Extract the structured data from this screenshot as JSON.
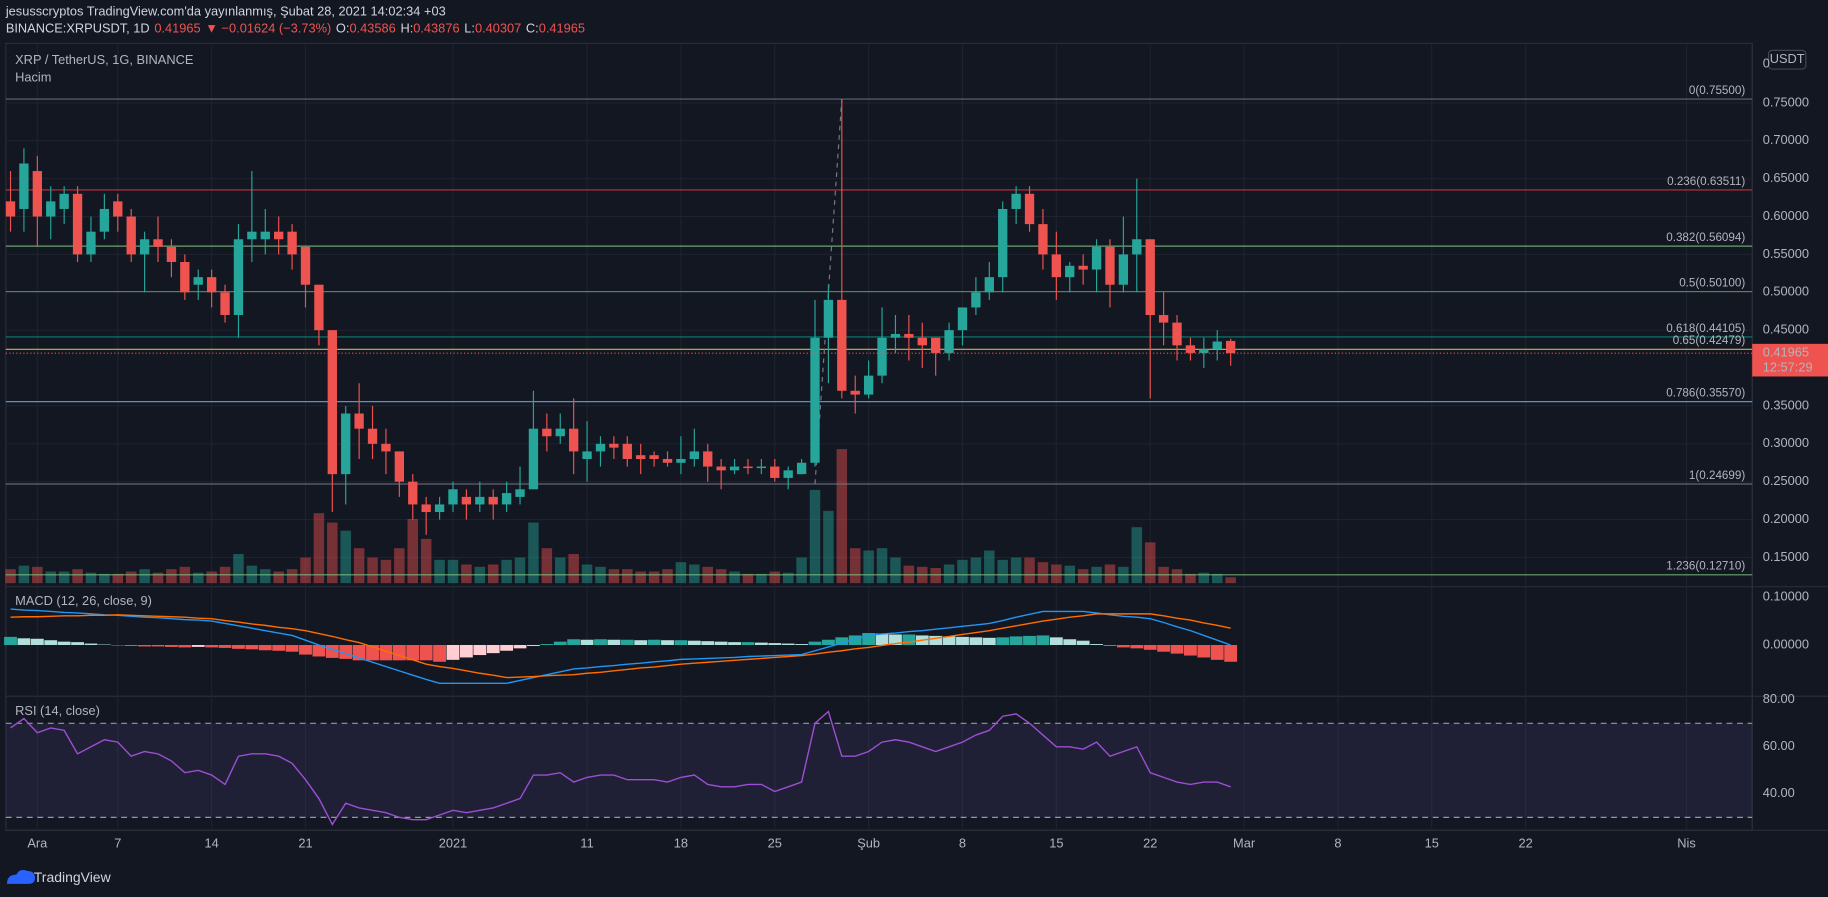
{
  "header": {
    "line1": "jesusscryptos TradingView.com'da yayınlanmış, Şubat 28, 2021 14:02:34 +03",
    "symbol": "BINANCE:XRPUSDT, 1D",
    "last": "0.41965",
    "change": "▼ −0.01624 (−3.73%)",
    "ohlc": [
      {
        "label": "O:",
        "value": "0.43586"
      },
      {
        "label": "H:",
        "value": "0.43876"
      },
      {
        "label": "L:",
        "value": "0.40307"
      },
      {
        "label": "C:",
        "value": "0.41965"
      }
    ]
  },
  "chart_data": [
    {
      "type": "candlestick",
      "title": "XRP / TetherUS, 1G, BINANCE",
      "volume_label": "Hacim",
      "currency": "USDT",
      "axis_top": "0",
      "up_color": "#26a69a",
      "down_color": "#ef5350",
      "grid": true,
      "x": [
        0,
        1,
        2,
        3,
        4,
        5,
        6,
        7,
        8,
        9,
        10,
        11,
        12,
        13,
        14,
        15,
        16,
        17,
        18,
        19,
        20,
        21,
        22,
        23,
        24,
        25,
        26,
        27,
        28,
        29,
        30,
        31,
        32,
        33,
        34,
        35,
        36,
        37,
        38,
        39,
        40,
        41,
        42,
        43,
        44,
        45,
        46,
        47,
        48,
        49,
        50,
        51,
        52,
        53,
        54,
        55,
        56,
        57,
        58,
        59,
        60,
        61,
        62,
        63,
        64,
        65,
        66,
        67,
        68,
        69,
        70,
        71,
        72,
        73,
        74,
        75,
        76,
        77,
        78,
        79,
        80,
        81,
        82,
        83,
        84,
        85,
        86,
        87,
        88,
        89,
        90,
        91
      ],
      "open": [
        0.62,
        0.61,
        0.66,
        0.6,
        0.61,
        0.63,
        0.55,
        0.58,
        0.62,
        0.6,
        0.55,
        0.57,
        0.56,
        0.54,
        0.51,
        0.52,
        0.5,
        0.47,
        0.57,
        0.57,
        0.58,
        0.58,
        0.56,
        0.51,
        0.45,
        0.26,
        0.34,
        0.32,
        0.3,
        0.29,
        0.25,
        0.22,
        0.21,
        0.22,
        0.23,
        0.22,
        0.23,
        0.22,
        0.23,
        0.24,
        0.32,
        0.31,
        0.32,
        0.28,
        0.29,
        0.3,
        0.3,
        0.285,
        0.285,
        0.28,
        0.275,
        0.28,
        0.29,
        0.27,
        0.265,
        0.27,
        0.268,
        0.27,
        0.255,
        0.26,
        0.275,
        0.44,
        0.49,
        0.37,
        0.365,
        0.39,
        0.44,
        0.445,
        0.44,
        0.44,
        0.42,
        0.45,
        0.48,
        0.5,
        0.52,
        0.61,
        0.63,
        0.59,
        0.55,
        0.52,
        0.535,
        0.53,
        0.56,
        0.51,
        0.55,
        0.57,
        0.47,
        0.46,
        0.43,
        0.42,
        0.425,
        0.43586
      ],
      "high": [
        0.66,
        0.69,
        0.68,
        0.64,
        0.64,
        0.64,
        0.6,
        0.63,
        0.63,
        0.61,
        0.58,
        0.6,
        0.57,
        0.55,
        0.53,
        0.53,
        0.51,
        0.59,
        0.66,
        0.61,
        0.6,
        0.59,
        0.56,
        0.51,
        0.45,
        0.35,
        0.38,
        0.35,
        0.32,
        0.29,
        0.26,
        0.23,
        0.23,
        0.25,
        0.24,
        0.25,
        0.24,
        0.25,
        0.27,
        0.37,
        0.34,
        0.34,
        0.36,
        0.33,
        0.31,
        0.31,
        0.31,
        0.3,
        0.29,
        0.29,
        0.31,
        0.32,
        0.3,
        0.28,
        0.28,
        0.28,
        0.28,
        0.28,
        0.27,
        0.28,
        0.49,
        0.51,
        0.755,
        0.39,
        0.41,
        0.48,
        0.47,
        0.47,
        0.46,
        0.44,
        0.46,
        0.48,
        0.52,
        0.54,
        0.62,
        0.64,
        0.64,
        0.61,
        0.58,
        0.54,
        0.55,
        0.57,
        0.57,
        0.6,
        0.65,
        0.57,
        0.5,
        0.47,
        0.44,
        0.44,
        0.45,
        0.43876
      ],
      "low": [
        0.58,
        0.58,
        0.56,
        0.57,
        0.59,
        0.54,
        0.54,
        0.57,
        0.58,
        0.54,
        0.5,
        0.54,
        0.52,
        0.49,
        0.49,
        0.48,
        0.46,
        0.44,
        0.54,
        0.55,
        0.55,
        0.53,
        0.48,
        0.43,
        0.21,
        0.22,
        0.28,
        0.28,
        0.26,
        0.23,
        0.2,
        0.18,
        0.2,
        0.21,
        0.2,
        0.21,
        0.2,
        0.21,
        0.22,
        0.24,
        0.29,
        0.3,
        0.26,
        0.25,
        0.27,
        0.28,
        0.27,
        0.26,
        0.27,
        0.27,
        0.26,
        0.27,
        0.25,
        0.24,
        0.26,
        0.26,
        0.26,
        0.25,
        0.24,
        0.26,
        0.27,
        0.38,
        0.36,
        0.34,
        0.36,
        0.38,
        0.42,
        0.41,
        0.4,
        0.39,
        0.41,
        0.43,
        0.47,
        0.49,
        0.5,
        0.59,
        0.58,
        0.53,
        0.49,
        0.5,
        0.51,
        0.5,
        0.48,
        0.5,
        0.5,
        0.36,
        0.43,
        0.41,
        0.41,
        0.4,
        0.41,
        0.40307
      ],
      "close": [
        0.6,
        0.67,
        0.6,
        0.62,
        0.63,
        0.55,
        0.58,
        0.61,
        0.6,
        0.55,
        0.57,
        0.56,
        0.54,
        0.5,
        0.52,
        0.5,
        0.47,
        0.57,
        0.58,
        0.58,
        0.57,
        0.55,
        0.51,
        0.45,
        0.26,
        0.34,
        0.32,
        0.3,
        0.29,
        0.25,
        0.22,
        0.21,
        0.22,
        0.24,
        0.22,
        0.23,
        0.22,
        0.235,
        0.24,
        0.32,
        0.31,
        0.32,
        0.29,
        0.29,
        0.3,
        0.295,
        0.28,
        0.28,
        0.28,
        0.275,
        0.28,
        0.29,
        0.27,
        0.265,
        0.27,
        0.268,
        0.27,
        0.255,
        0.265,
        0.275,
        0.44,
        0.49,
        0.37,
        0.365,
        0.39,
        0.44,
        0.445,
        0.44,
        0.43,
        0.42,
        0.45,
        0.48,
        0.5,
        0.52,
        0.61,
        0.63,
        0.59,
        0.55,
        0.52,
        0.535,
        0.53,
        0.56,
        0.51,
        0.55,
        0.57,
        0.47,
        0.46,
        0.43,
        0.42,
        0.425,
        0.435,
        0.41965
      ],
      "volume": [
        12,
        15,
        14,
        10,
        10,
        12,
        9,
        8,
        8,
        10,
        12,
        9,
        12,
        14,
        9,
        10,
        14,
        25,
        15,
        12,
        10,
        12,
        22,
        60,
        52,
        45,
        30,
        22,
        20,
        30,
        55,
        38,
        20,
        20,
        16,
        14,
        16,
        20,
        22,
        52,
        30,
        22,
        25,
        16,
        14,
        12,
        12,
        10,
        10,
        12,
        18,
        16,
        14,
        12,
        10,
        8,
        8,
        10,
        9,
        22,
        80,
        62,
        115,
        30,
        28,
        30,
        22,
        15,
        14,
        13,
        16,
        20,
        22,
        28,
        20,
        22,
        22,
        18,
        16,
        15,
        12,
        14,
        16,
        14,
        48,
        35,
        14,
        12,
        8,
        9,
        8,
        5
      ],
      "xlim": [
        -0.35,
        129.9
      ],
      "xticks": [
        {
          "value": 2,
          "label": "Ara"
        },
        {
          "value": 8,
          "label": "7"
        },
        {
          "value": 15,
          "label": "14"
        },
        {
          "value": 22,
          "label": "21"
        },
        {
          "value": 33,
          "label": "2021"
        },
        {
          "value": 43,
          "label": "11"
        },
        {
          "value": 50,
          "label": "18"
        },
        {
          "value": 57,
          "label": "25"
        },
        {
          "value": 64,
          "label": "Şub"
        },
        {
          "value": 71,
          "label": "8"
        },
        {
          "value": 78,
          "label": "15"
        },
        {
          "value": 85,
          "label": "22"
        },
        {
          "value": 92,
          "label": "Mar"
        },
        {
          "value": 99,
          "label": "8"
        },
        {
          "value": 106,
          "label": "15"
        },
        {
          "value": 113,
          "label": "22"
        },
        {
          "value": 125,
          "label": "Nis"
        }
      ],
      "ylim": [
        0.1115,
        0.827
      ],
      "yticks": [
        {
          "value": 0.75,
          "label": "0.75000"
        },
        {
          "value": 0.7,
          "label": "0.70000"
        },
        {
          "value": 0.65,
          "label": "0.65000"
        },
        {
          "value": 0.6,
          "label": "0.60000"
        },
        {
          "value": 0.55,
          "label": "0.55000"
        },
        {
          "value": 0.5,
          "label": "0.50000"
        },
        {
          "value": 0.45,
          "label": "0.45000"
        },
        {
          "value": 0.35,
          "label": "0.35000"
        },
        {
          "value": 0.3,
          "label": "0.30000"
        },
        {
          "value": 0.25,
          "label": "0.25000"
        },
        {
          "value": 0.2,
          "label": "0.20000"
        },
        {
          "value": 0.15,
          "label": "0.15000"
        }
      ],
      "fib_levels": [
        {
          "value": 0.755,
          "label": "0(0.75500)",
          "color": "#787b86"
        },
        {
          "value": 0.63511,
          "label": "0.236(0.63511)",
          "color": "#f23645"
        },
        {
          "value": 0.56094,
          "label": "0.382(0.56094)",
          "color": "#81c784"
        },
        {
          "value": 0.501,
          "label": "0.5(0.50100)",
          "color": "#4caf50"
        },
        {
          "value": 0.44105,
          "label": "0.618(0.44105)",
          "color": "#089981"
        },
        {
          "value": 0.42479,
          "label": "0.65(0.42479)",
          "color": "#f5e050"
        },
        {
          "value": 0.3557,
          "label": "0.786(0.35570)",
          "color": "#64b5f6"
        },
        {
          "value": 0.24699,
          "label": "1(0.24699)",
          "color": "#787b86"
        },
        {
          "value": 0.1271,
          "label": "1.236(0.12710)",
          "color": "#81c784"
        }
      ],
      "fib_line_x": [
        60,
        62
      ],
      "last_price": {
        "value": 0.41965,
        "label": "0.41965"
      },
      "countdown": "12:57:29"
    },
    {
      "type": "macd",
      "title": "MACD (12, 26, close, 9)",
      "series": [
        {
          "values": [
            0.017,
            0.014,
            0.013,
            0.01,
            0.007,
            0.006,
            0.003,
            0.001,
            -0.001,
            -0.002,
            -0.003,
            -0.003,
            -0.004,
            -0.005,
            -0.004,
            -0.005,
            -0.006,
            -0.008,
            -0.009,
            -0.011,
            -0.012,
            -0.014,
            -0.02,
            -0.024,
            -0.027,
            -0.029,
            -0.032,
            -0.032,
            -0.032,
            -0.032,
            -0.032,
            -0.032,
            -0.035,
            -0.031,
            -0.026,
            -0.021,
            -0.017,
            -0.012,
            -0.007,
            -0.002,
            0.002,
            0.007,
            0.012,
            0.011,
            0.012,
            0.011,
            0.011,
            0.01,
            0.011,
            0.01,
            0.01,
            0.009,
            0.008,
            0.007,
            0.006,
            0.006,
            0.005,
            0.004,
            0.003,
            0.002,
            0.007,
            0.011,
            0.016,
            0.02,
            0.025,
            0.024,
            0.022,
            0.022,
            0.02,
            0.019,
            0.018,
            0.017,
            0.016,
            0.015,
            0.016,
            0.018,
            0.019,
            0.02,
            0.016,
            0.012,
            0.009,
            0.002,
            -0.002,
            -0.005,
            -0.007,
            -0.01,
            -0.014,
            -0.018,
            -0.022,
            -0.026,
            -0.031,
            -0.035
          ],
          "colors": [
            "#26a69a",
            "#b2dfdb",
            "#ef5350",
            "#ffcdd2"
          ]
        },
        {
          "color": "#2196f3",
          "values": [
            0.075,
            0.073,
            0.072,
            0.07,
            0.068,
            0.067,
            0.065,
            0.063,
            0.062,
            0.06,
            0.058,
            0.057,
            0.055,
            0.053,
            0.052,
            0.05,
            0.045,
            0.04,
            0.035,
            0.03,
            0.025,
            0.02,
            0.01,
            0,
            -0.009,
            -0.018,
            -0.027,
            -0.036,
            -0.045,
            -0.054,
            -0.063,
            -0.072,
            -0.08,
            -0.08,
            -0.08,
            -0.08,
            -0.08,
            -0.08,
            -0.074,
            -0.068,
            -0.062,
            -0.056,
            -0.05,
            -0.048,
            -0.045,
            -0.043,
            -0.04,
            -0.038,
            -0.035,
            -0.033,
            -0.03,
            -0.029,
            -0.028,
            -0.027,
            -0.026,
            -0.024,
            -0.023,
            -0.022,
            -0.021,
            -0.02,
            -0.012,
            -0.004,
            0.004,
            0.012,
            0.02,
            0.023,
            0.025,
            0.028,
            0.03,
            0.033,
            0.036,
            0.039,
            0.042,
            0.045,
            0.051,
            0.058,
            0.064,
            0.07,
            0.07,
            0.07,
            0.07,
            0.067,
            0.063,
            0.06,
            0.058,
            0.055,
            0.047,
            0.038,
            0.03,
            0.02,
            0.01,
            0
          ]
        },
        {
          "color": "#ff6d00",
          "values": [
            0.058,
            0.059,
            0.059,
            0.06,
            0.061,
            0.061,
            0.062,
            0.062,
            0.063,
            0.062,
            0.061,
            0.06,
            0.059,
            0.058,
            0.056,
            0.055,
            0.051,
            0.048,
            0.044,
            0.041,
            0.037,
            0.034,
            0.03,
            0.024,
            0.018,
            0.011,
            0.005,
            -0.004,
            -0.013,
            -0.022,
            -0.031,
            -0.04,
            -0.045,
            -0.049,
            -0.054,
            -0.059,
            -0.063,
            -0.068,
            -0.067,
            -0.066,
            -0.064,
            -0.063,
            -0.062,
            -0.059,
            -0.057,
            -0.054,
            -0.051,
            -0.048,
            -0.046,
            -0.043,
            -0.04,
            -0.038,
            -0.036,
            -0.034,
            -0.032,
            -0.03,
            -0.028,
            -0.026,
            -0.024,
            -0.022,
            -0.019,
            -0.015,
            -0.012,
            -0.008,
            -0.005,
            -0.001,
            0.003,
            0.006,
            0.01,
            0.014,
            0.018,
            0.022,
            0.026,
            0.03,
            0.035,
            0.04,
            0.045,
            0.05,
            0.054,
            0.058,
            0.061,
            0.065,
            0.065,
            0.065,
            0.065,
            0.065,
            0.061,
            0.056,
            0.052,
            0.046,
            0.041,
            0.035
          ]
        }
      ],
      "ylim": [
        -0.107,
        0.117
      ],
      "yticks": [
        {
          "value": 0.1,
          "label": "0.10000"
        },
        {
          "value": 0,
          "label": "0.00000"
        }
      ]
    },
    {
      "type": "rsi",
      "title": "RSI (14, close)",
      "color": "#9c4fd0",
      "values": [
        68,
        72,
        66,
        68,
        67,
        57,
        60,
        63,
        62,
        56,
        58,
        57,
        54,
        49,
        50,
        48,
        44,
        56,
        57,
        57,
        56,
        53,
        46,
        38,
        27,
        36,
        34,
        33,
        32,
        30,
        29,
        29,
        31,
        33,
        32,
        33,
        34,
        36,
        38,
        48,
        48,
        49,
        45,
        47,
        48,
        48,
        46,
        46,
        46,
        45,
        47,
        48,
        44,
        43,
        43,
        44,
        44,
        41,
        43,
        45,
        70,
        75,
        56,
        56,
        58,
        62,
        63,
        62,
        60,
        58,
        60,
        62,
        65,
        67,
        73,
        74,
        70,
        65,
        60,
        60,
        59,
        62,
        56,
        58,
        60,
        49,
        47,
        45,
        44,
        45,
        45,
        43
      ],
      "bands": [
        30,
        70
      ],
      "ylim": [
        24.5,
        81.5
      ],
      "yticks": [
        {
          "value": 80,
          "label": "80.00"
        },
        {
          "value": 60,
          "label": "60.00"
        },
        {
          "value": 40,
          "label": "40.00"
        }
      ]
    }
  ],
  "footer": "TradingView"
}
